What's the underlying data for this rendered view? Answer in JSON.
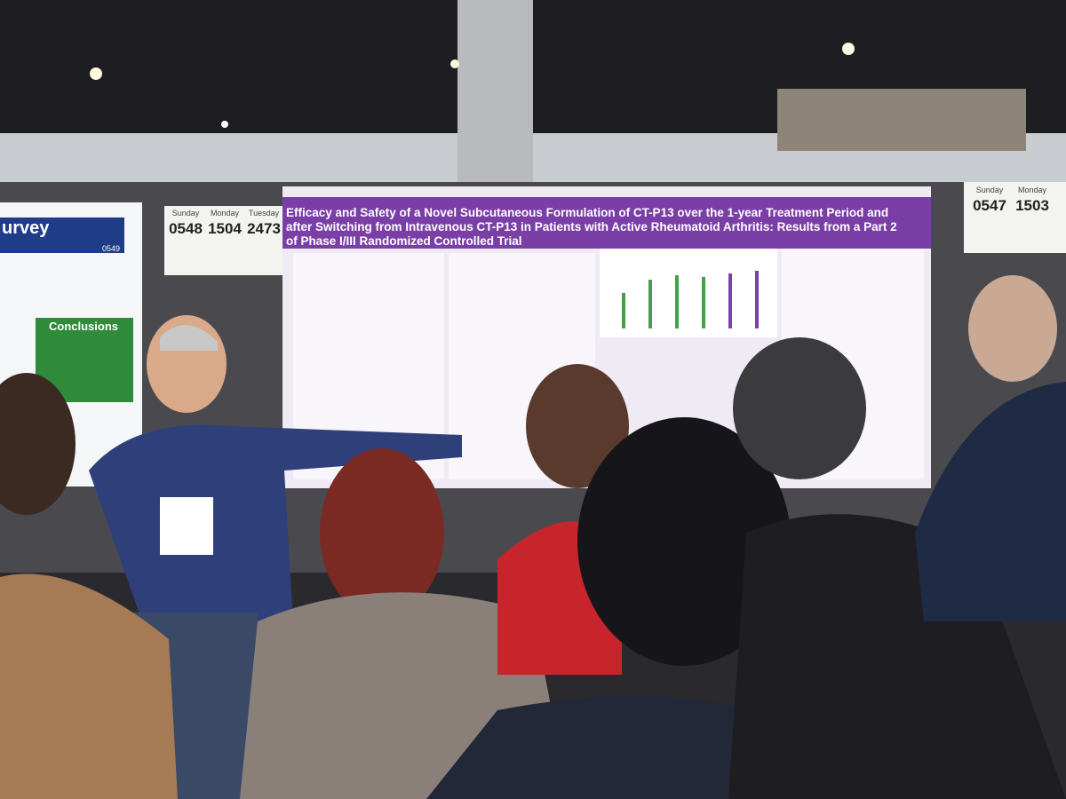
{
  "left_poster": {
    "heading": "urvey",
    "number": "0549",
    "section": "Conclusions"
  },
  "center_board": {
    "days": [
      "Sunday",
      "Monday",
      "Tuesday"
    ],
    "numbers": [
      "0548",
      "1504",
      "2473"
    ]
  },
  "main_poster": {
    "title": "Efficacy and Safety of a Novel Subcutaneous Formulation of CT-P13 over the 1-year Treatment Period and after Switching from Intravenous CT-P13 in Patients with Active Rheumatoid Arthritis: Results from a Part 2 of Phase I/III Randomized Controlled Trial"
  },
  "right_board": {
    "days": [
      "Sunday",
      "Monday"
    ],
    "numbers": [
      "0547",
      "1503"
    ]
  }
}
